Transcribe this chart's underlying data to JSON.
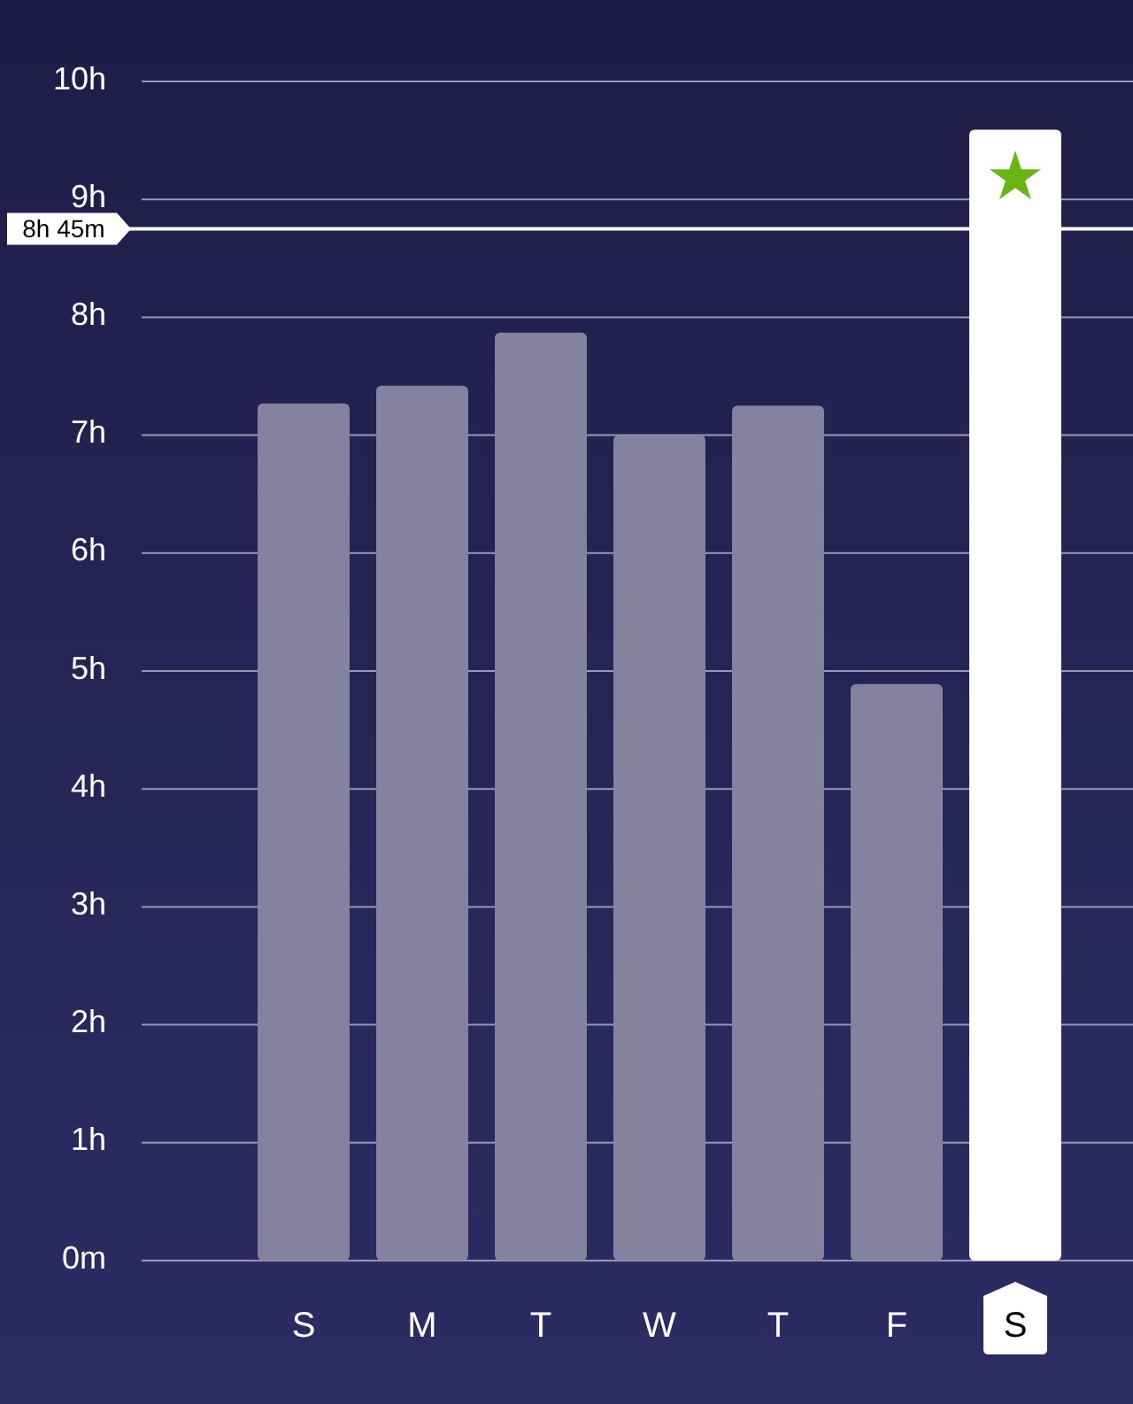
{
  "chart_data": {
    "type": "bar",
    "categories": [
      "S",
      "M",
      "T",
      "W",
      "T",
      "F",
      "S"
    ],
    "values": [
      7.27,
      7.42,
      7.87,
      7.0,
      7.25,
      4.89,
      9.59
    ],
    "colors": [
      "#85829f",
      "#85829f",
      "#85829f",
      "#85829f",
      "#85829f",
      "#85829f",
      "#ffffff"
    ],
    "ylim": [
      0,
      10
    ],
    "yticks": [
      {
        "value": 0,
        "label": "0m"
      },
      {
        "value": 1,
        "label": "1h"
      },
      {
        "value": 2,
        "label": "2h"
      },
      {
        "value": 3,
        "label": "3h"
      },
      {
        "value": 4,
        "label": "4h"
      },
      {
        "value": 5,
        "label": "5h"
      },
      {
        "value": 6,
        "label": "6h"
      },
      {
        "value": 7,
        "label": "7h"
      },
      {
        "value": 8,
        "label": "8h"
      },
      {
        "value": 9,
        "label": "9h"
      },
      {
        "value": 10,
        "label": "10h"
      }
    ],
    "grid": "y",
    "ref_lines": [
      {
        "axis": "y",
        "value": 8.75,
        "label": "8h 45m",
        "color": "#ffffff"
      }
    ]
  }
}
